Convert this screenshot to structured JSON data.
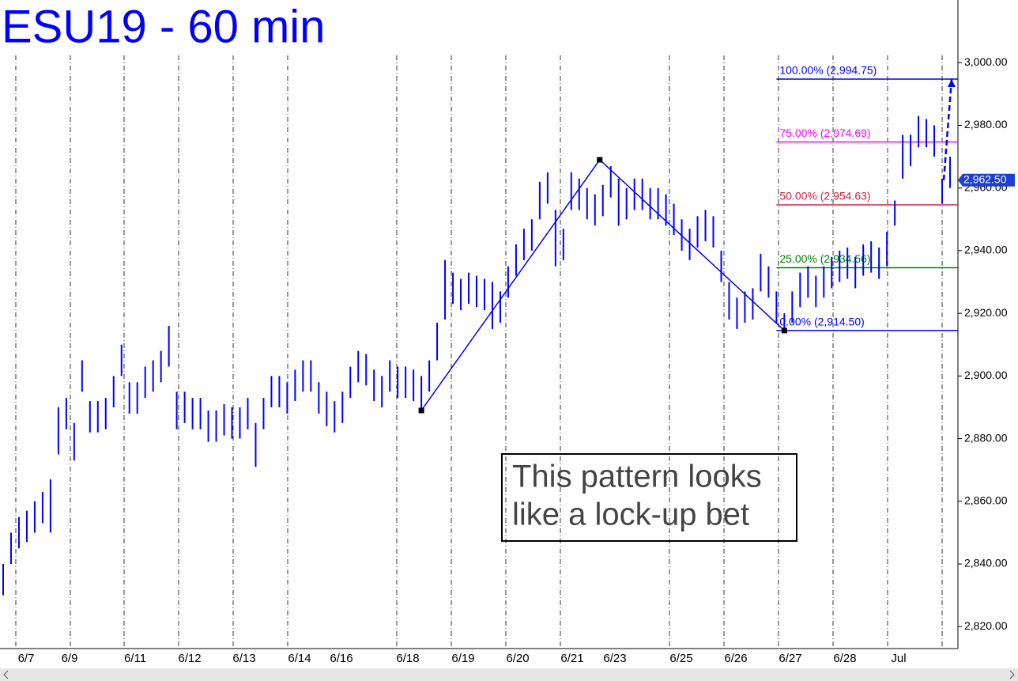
{
  "chart_data": {
    "type": "ohlc",
    "title": "ESU19 - 60 min",
    "color": "#0000ff",
    "xlim": [
      -0.4,
      121
    ],
    "ylim": [
      2813,
      3020
    ],
    "yticks": [
      {
        "value": 2820,
        "label": "2,820.00"
      },
      {
        "value": 2840,
        "label": "2,840.00"
      },
      {
        "value": 2860,
        "label": "2,860.00"
      },
      {
        "value": 2880,
        "label": "2,880.00"
      },
      {
        "value": 2900,
        "label": "2,900.00"
      },
      {
        "value": 2920,
        "label": "2,920.00"
      },
      {
        "value": 2940,
        "label": "2,940.00"
      },
      {
        "value": 2960,
        "label": "2,960.00"
      },
      {
        "value": 2980,
        "label": "2,980.00"
      },
      {
        "value": 3000,
        "label": "3,000.00"
      }
    ],
    "x_labels": [
      "6/7",
      "6/9",
      "6/11",
      "6/12",
      "6/13",
      "6/14",
      "6/16",
      "6/18",
      "6/19",
      "6/20",
      "6/21",
      "6/23",
      "6/25",
      "6/26",
      "6/27",
      "6/28",
      "Jul"
    ],
    "high": [
      2840,
      2850,
      2855,
      2857,
      2860,
      2863,
      2867,
      2890,
      2893,
      2885,
      2905,
      2892,
      2892,
      2893,
      2900,
      2910,
      2898,
      2898,
      2903,
      2905,
      2908,
      2916,
      2895,
      2895,
      2893,
      2893,
      2889,
      2889,
      2891,
      2890,
      2890,
      2893,
      2885,
      2893,
      2900,
      2900,
      2898,
      2902,
      2905,
      2905,
      2898,
      2895,
      2892,
      2895,
      2903,
      2908,
      2907,
      2902,
      2900,
      2905,
      2903,
      2903,
      2902,
      2900,
      2905,
      2917,
      2937,
      2933,
      2931,
      2933,
      2932,
      2931,
      2930,
      2927,
      2935,
      2942,
      2947,
      2950,
      2962,
      2965,
      2953,
      2947,
      2965,
      2963,
      2960,
      2958,
      2961,
      2967,
      2963,
      2960,
      2963,
      2963,
      2960,
      2960,
      2958,
      2955,
      2950,
      2947,
      2951,
      2953,
      2951,
      2940,
      2930,
      2925,
      2927,
      2928,
      2939,
      2935,
      2927,
      2920,
      2927,
      2933,
      2935,
      2932,
      2935,
      2938,
      2940,
      2941,
      2938,
      2942,
      2943,
      2941,
      2946,
      2956,
      2977,
      2977,
      2983,
      2982,
      2980,
      2963,
      2970
    ],
    "low": [
      2830,
      2840,
      2845,
      2847,
      2850,
      2853,
      2850,
      2875,
      2883,
      2873,
      2895,
      2882,
      2882,
      2883,
      2890,
      2900,
      2888,
      2888,
      2893,
      2895,
      2898,
      2903,
      2883,
      2885,
      2883,
      2883,
      2879,
      2879,
      2881,
      2880,
      2880,
      2883,
      2871,
      2883,
      2890,
      2890,
      2888,
      2892,
      2895,
      2895,
      2888,
      2884,
      2882,
      2885,
      2893,
      2898,
      2897,
      2892,
      2890,
      2895,
      2893,
      2893,
      2892,
      2889,
      2895,
      2905,
      2918,
      2923,
      2921,
      2923,
      2922,
      2921,
      2915,
      2917,
      2925,
      2932,
      2937,
      2940,
      2950,
      2955,
      2935,
      2937,
      2953,
      2953,
      2950,
      2948,
      2951,
      2957,
      2948,
      2950,
      2953,
      2953,
      2950,
      2950,
      2948,
      2945,
      2940,
      2937,
      2941,
      2943,
      2941,
      2930,
      2918,
      2915,
      2917,
      2918,
      2927,
      2925,
      2917,
      2914,
      2917,
      2922,
      2925,
      2922,
      2925,
      2928,
      2930,
      2931,
      2928,
      2932,
      2933,
      2931,
      2935,
      2948,
      2963,
      2967,
      2973,
      2973,
      2970,
      2955,
      2960
    ],
    "last_price": {
      "value": 2962.5,
      "label": "2,962.50"
    },
    "pattern_x": [
      53,
      75.6,
      99
    ],
    "pattern_y": [
      2889,
      2969,
      2914.5
    ],
    "projection_x": [
      119.2,
      120.2
    ],
    "projection_y": [
      2962.5,
      2994.75
    ],
    "fib_levels": [
      {
        "label": "100.00% (2,994.75)",
        "value": 2994.75,
        "color": "#0000ff"
      },
      {
        "label": "75.00% (2,974.69)",
        "value": 2974.69,
        "color": "#ff00ff"
      },
      {
        "label": "50.00% (2,954.63)",
        "value": 2954.63,
        "color": "#d0203a"
      },
      {
        "label": "25.00% (2,934.56)",
        "value": 2934.56,
        "color": "#008000"
      },
      {
        "label": "0.00% (2,914.50)",
        "value": 2914.5,
        "color": "#0000ff"
      }
    ],
    "annotation": [
      "This pattern looks",
      "like a lock-up bet"
    ]
  }
}
